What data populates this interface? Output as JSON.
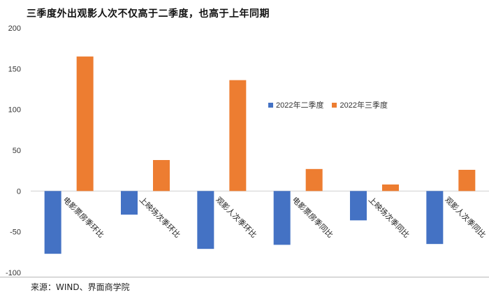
{
  "title": "三季度外出观影人次不仅高于二季度，也高于上年同期",
  "source": "来源：WIND、界面商学院",
  "colors": {
    "series1": "#4472C4",
    "series2": "#ED7D31",
    "axis": "#d0d0d0"
  },
  "chart_data": {
    "type": "bar",
    "categories": [
      "电影票房季环比",
      "上映场次季环比",
      "观影人次季环比",
      "电影票房季同比",
      "上映场次季同比",
      "观影人次季同比"
    ],
    "series": [
      {
        "name": "2022年二季度",
        "values": [
          -77,
          -29,
          -71,
          -66,
          -36,
          -65
        ]
      },
      {
        "name": "2022年三季度",
        "values": [
          165,
          38,
          136,
          27,
          8,
          26
        ]
      }
    ],
    "ylim": [
      -100,
      200
    ],
    "yticks": [
      -100,
      -50,
      0,
      50,
      100,
      150,
      200
    ],
    "legend_position": "right-center",
    "grid": false
  }
}
